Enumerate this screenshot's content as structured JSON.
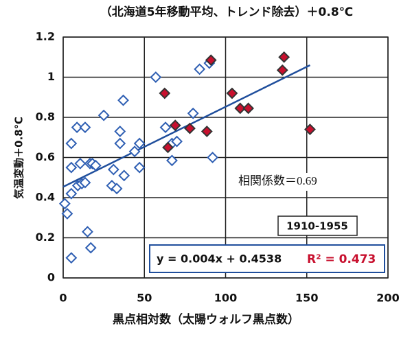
{
  "chart_data": {
    "type": "scatter",
    "title": "（北海道5年移動平均、トレンド除去）＋0.8℃",
    "x_label": "黒点相対数（太陽ウォルフ黒点数）",
    "y_label": "気温変動＋0.8℃",
    "annotations": {
      "correlation": "相関係数＝0.69",
      "period": "1910-1955",
      "equation": "y = 0.004x + 0.4538",
      "r2": "R² = 0.473"
    },
    "xlim": [
      0,
      200
    ],
    "xticks": [
      0,
      50,
      100,
      150,
      200
    ],
    "ylim": [
      0,
      1.2
    ],
    "yticks": [
      0,
      0.2,
      0.4,
      0.6,
      0.8,
      1,
      1.2
    ],
    "grid": true,
    "series": [
      {
        "color": "#2f5fb3",
        "filled": false,
        "x": [
          1,
          2.5,
          5,
          5,
          5,
          5,
          8.5,
          9,
          10.5,
          11.5,
          13.5,
          13.5,
          15,
          16.5,
          17,
          18,
          20,
          25,
          30,
          31,
          33,
          35,
          35,
          37,
          37.5,
          44,
          47,
          47,
          57,
          63,
          67,
          67,
          70,
          80,
          84,
          90,
          92
        ],
        "values": [
          0.37,
          0.32,
          0.1,
          0.67,
          0.42,
          0.55,
          0.75,
          0.46,
          0.57,
          0.47,
          0.475,
          0.75,
          0.23,
          0.57,
          0.15,
          0.57,
          0.56,
          0.81,
          0.46,
          0.54,
          0.445,
          0.73,
          0.67,
          0.885,
          0.51,
          0.63,
          0.67,
          0.55,
          1.0,
          0.75,
          0.67,
          0.585,
          0.68,
          0.82,
          1.04,
          1.07,
          0.6
        ]
      },
      {
        "color": "#c8102e",
        "filled": true,
        "x": [
          62.5,
          64.5,
          69,
          78,
          88.5,
          91,
          104,
          109,
          114,
          135,
          136,
          152
        ],
        "values": [
          0.92,
          0.65,
          0.76,
          0.745,
          0.73,
          1.085,
          0.92,
          0.845,
          0.845,
          1.035,
          1.1,
          0.74
        ]
      }
    ],
    "trendline": {
      "color": "#1f4e9c",
      "x": [
        0,
        152
      ],
      "values": [
        0.4538,
        1.06
      ]
    }
  }
}
